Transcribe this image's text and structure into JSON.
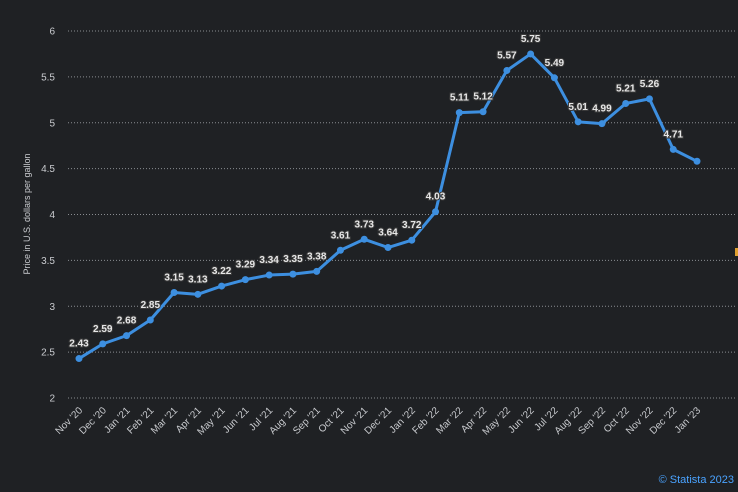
{
  "chart_data": {
    "type": "line",
    "ylabel": "Price in U.S. dollars per gallon",
    "ylim": [
      2,
      6
    ],
    "yticks": [
      "2",
      "2.5",
      "3",
      "3.5",
      "4",
      "4.5",
      "5",
      "5.5",
      "6"
    ],
    "categories": [
      "Nov '20",
      "Dec '20",
      "Jan '21",
      "Feb '21",
      "Mar '21",
      "Apr '21",
      "May '21",
      "Jun '21",
      "Jul '21",
      "Aug '21",
      "Sep '21",
      "Oct '21",
      "Nov '21",
      "Dec '21",
      "Jan '22",
      "Feb '22",
      "Mar '22",
      "Apr '22",
      "May '22",
      "Jun '22",
      "Jul '22",
      "Aug '22",
      "Sep '22",
      "Oct '22",
      "Nov '22",
      "Dec '22",
      "Jan '23"
    ],
    "series": [
      {
        "values": [
          2.43,
          2.59,
          2.68,
          2.85,
          3.15,
          3.13,
          3.22,
          3.29,
          3.34,
          3.35,
          3.38,
          3.61,
          3.73,
          3.64,
          3.72,
          4.03,
          5.11,
          5.12,
          5.57,
          5.75,
          5.49,
          5.01,
          4.99,
          5.21,
          5.26,
          4.71,
          4.58
        ],
        "labels": [
          "2.43",
          "2.59",
          "2.68",
          "2.85",
          "3.15",
          "3.13",
          "3.22",
          "3.29",
          "3.34",
          "3.35",
          "3.38",
          "3.61",
          "3.73",
          "3.64",
          "3.72",
          "4.03",
          "5.11",
          "5.12",
          "5.57",
          "5.75",
          "5.49",
          "5.01",
          "4.99",
          "5.21",
          "5.26",
          "4.71",
          ""
        ],
        "color": "#3d8fe0"
      }
    ],
    "grid": true,
    "legend": "none"
  },
  "credit": "© Statista 2023"
}
